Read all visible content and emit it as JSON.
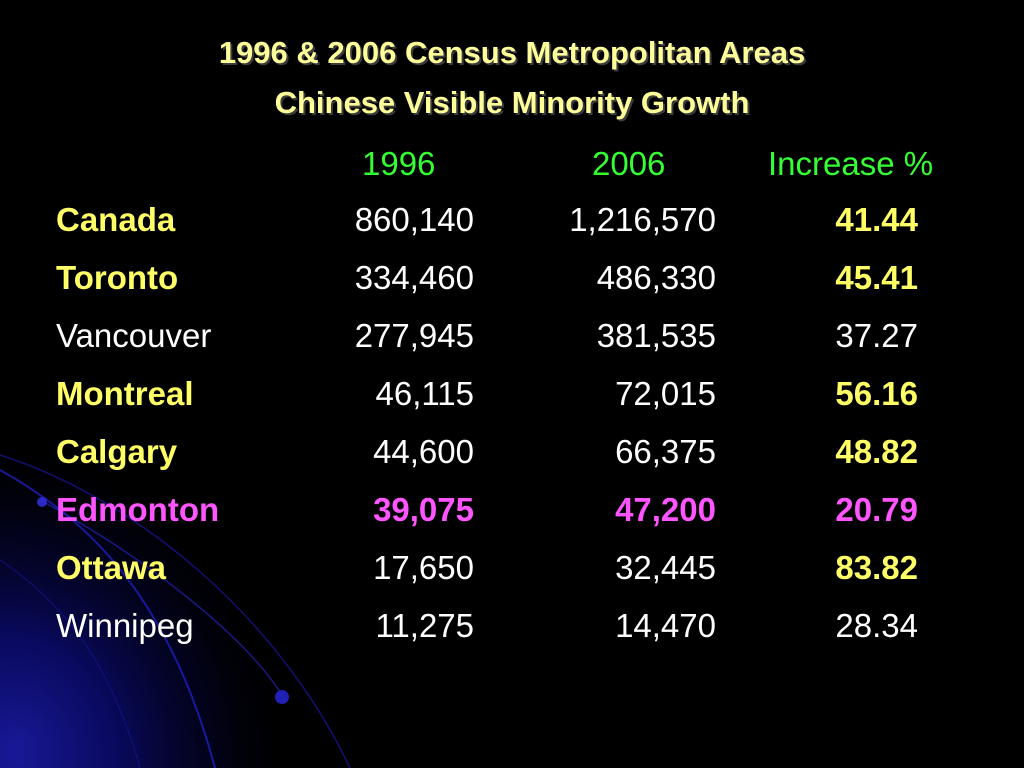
{
  "colors": {
    "title": "#ffff99",
    "header": "#33ff33",
    "yellow": "#ffff66",
    "white": "#ffffff",
    "magenta": "#ff55ff"
  },
  "title": {
    "line1": "1996 & 2006 Census Metropolitan Areas",
    "line2": "Chinese Visible Minority Growth"
  },
  "columns": {
    "y1996": "1996",
    "y2006": "2006",
    "increase": "Increase %"
  },
  "rows": [
    {
      "name": "Canada",
      "v1996": "860,140",
      "v2006": "1,216,570",
      "increase": "41.44"
    },
    {
      "name": "Toronto",
      "v1996": "334,460",
      "v2006": "486,330",
      "increase": "45.41"
    },
    {
      "name": "Vancouver",
      "v1996": "277,945",
      "v2006": "381,535",
      "increase": "37.27"
    },
    {
      "name": "Montreal",
      "v1996": "46,115",
      "v2006": "72,015",
      "increase": "56.16"
    },
    {
      "name": "Calgary",
      "v1996": "44,600",
      "v2006": "66,375",
      "increase": "48.82"
    },
    {
      "name": "Edmonton",
      "v1996": "39,075",
      "v2006": "47,200",
      "increase": "20.79"
    },
    {
      "name": "Ottawa",
      "v1996": "17,650",
      "v2006": "32,445",
      "increase": "83.82"
    },
    {
      "name": "Winnipeg",
      "v1996": "11,275",
      "v2006": "14,470",
      "increase": "28.34"
    }
  ]
}
